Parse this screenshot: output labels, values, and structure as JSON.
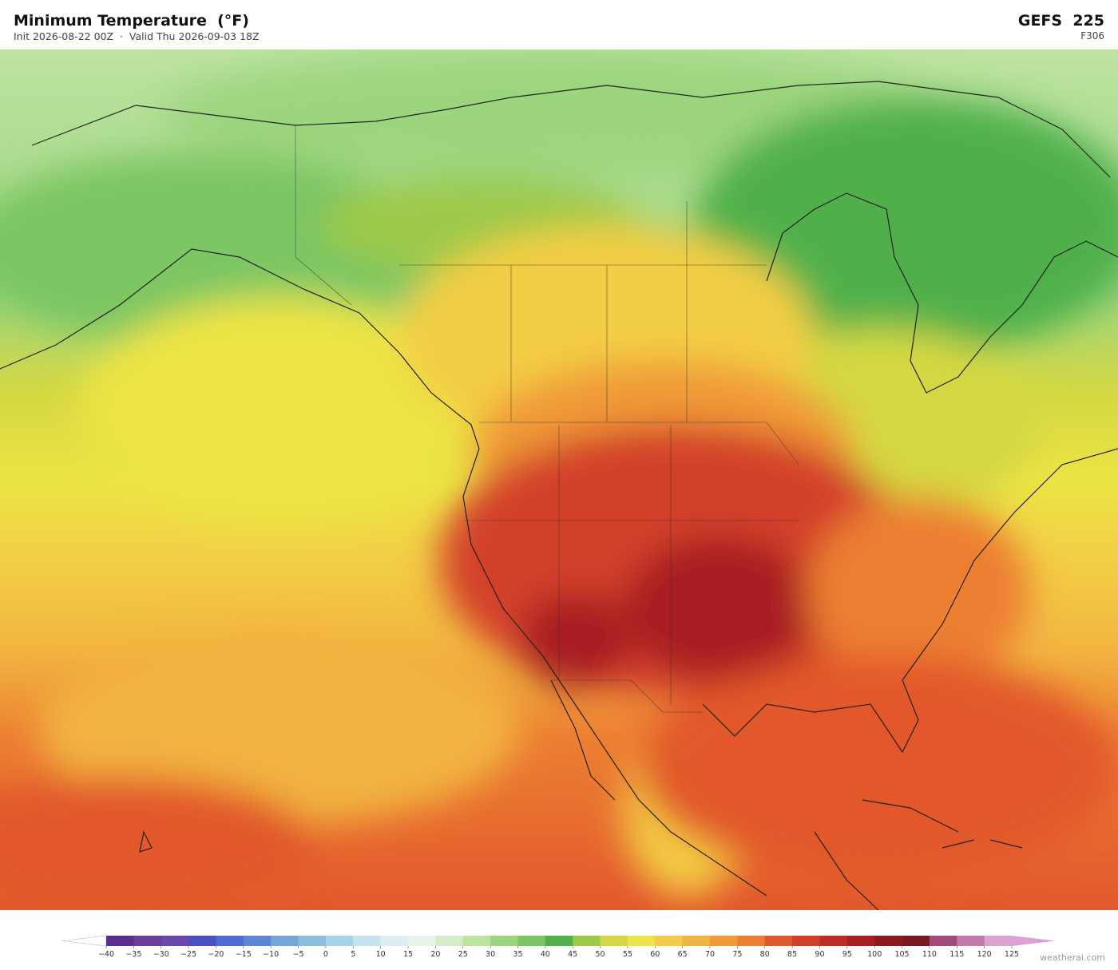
{
  "header": {
    "title": "Minimum Temperature  (°F)",
    "subtitle": "Init 2026-08-22 00Z  ·  Valid Thu 2026-09-03 18Z",
    "model": "GEFS  225",
    "forecast_hour": "F306"
  },
  "colorbar": {
    "ticks": [
      {
        "value": -40,
        "label": "−40"
      },
      {
        "value": -35,
        "label": "−35"
      },
      {
        "value": -30,
        "label": "−30"
      },
      {
        "value": -25,
        "label": "−25"
      },
      {
        "value": -20,
        "label": "−20"
      },
      {
        "value": -15,
        "label": "−15"
      },
      {
        "value": -10,
        "label": "−10"
      },
      {
        "value": -5,
        "label": "−5"
      },
      0,
      5,
      10,
      15,
      20,
      25,
      30,
      35,
      40,
      45,
      50,
      55,
      60,
      65,
      70,
      75,
      80,
      85,
      90,
      95,
      100,
      105,
      110,
      115,
      120,
      125
    ],
    "colors": [
      "#5b2d91",
      "#6a3d9a",
      "#6b47ad",
      "#4a4fc2",
      "#4f6ad0",
      "#5f86d6",
      "#79a4da",
      "#8fbde0",
      "#a8d4ea",
      "#c4e3ef",
      "#dbeef2",
      "#e8f4e8",
      "#d4ecc8",
      "#bde3a0",
      "#9dd57f",
      "#7bc664",
      "#4fb04c",
      "#9cc94a",
      "#d5d842",
      "#ece445",
      "#f3cd45",
      "#f2b440",
      "#f09a38",
      "#ec7f32",
      "#e2582c",
      "#d3402a",
      "#c02b26",
      "#a81e22",
      "#8e1a1e",
      "#7a1820",
      "#a34a7a",
      "#c479a8",
      "#dba4cc"
    ],
    "under_color": "#ffffff",
    "over_color": "#dca0d4"
  },
  "watermark": "weatherai.com"
}
